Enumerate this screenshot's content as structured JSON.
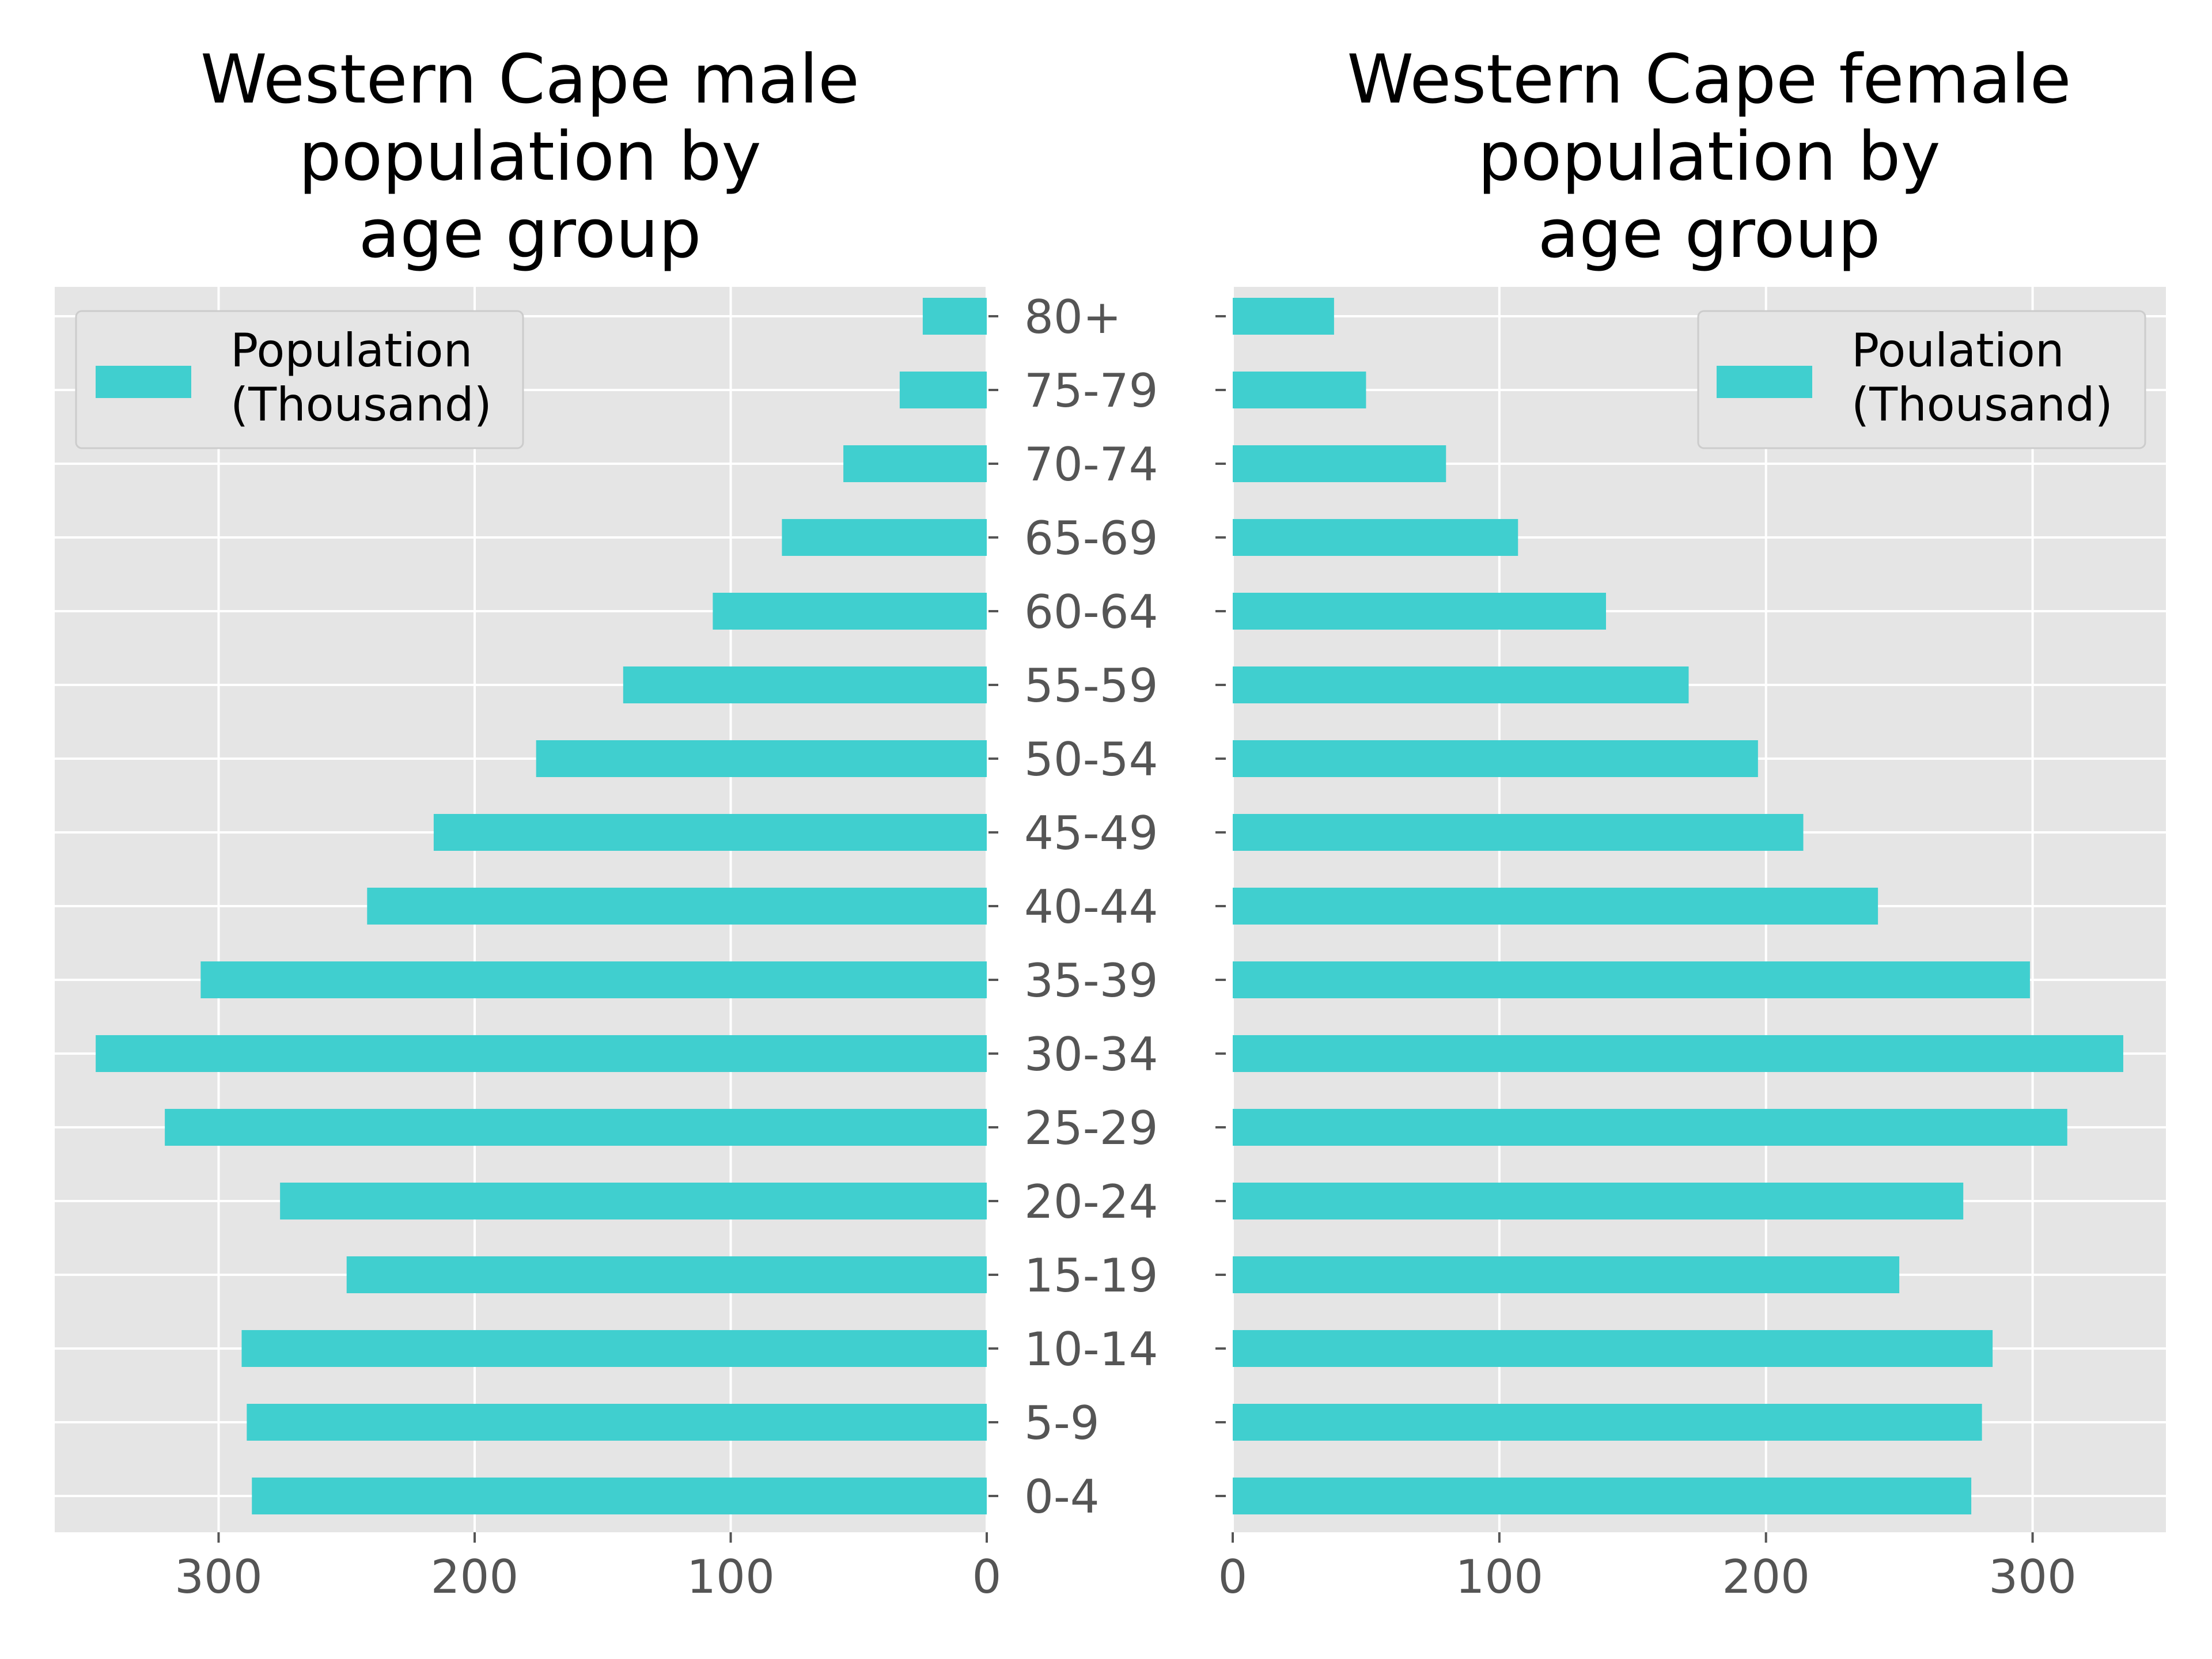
{
  "chart_data": [
    {
      "type": "bar",
      "orientation": "horizontal",
      "direction": "reversed",
      "title_lines": [
        "Western Cape male",
        "population by",
        "age group"
      ],
      "categories": [
        "0-4",
        "5-9",
        "10-14",
        "15-19",
        "20-24",
        "25-29",
        "30-34",
        "35-39",
        "40-44",
        "45-49",
        "50-54",
        "55-59",
        "60-64",
        "65-69",
        "70-74",
        "75-79",
        "80+"
      ],
      "series": [
        {
          "name_lines": [
            "Population",
            "(Thousand)"
          ],
          "values": [
            287,
            289,
            291,
            250,
            276,
            321,
            348,
            307,
            242,
            216,
            176,
            142,
            107,
            80,
            56,
            34,
            25
          ],
          "color": "#40CFCF"
        }
      ],
      "xlim": [
        0,
        364
      ],
      "xticks": [
        "0",
        "100",
        "200",
        "300"
      ],
      "xtick_values": [
        0,
        100,
        200,
        300
      ],
      "legend_position": "upper left",
      "grid": true,
      "background": "#E5E5E5"
    },
    {
      "type": "bar",
      "orientation": "horizontal",
      "direction": "normal",
      "title_lines": [
        "Western Cape female",
        "population by",
        "age group"
      ],
      "categories": [
        "0-4",
        "5-9",
        "10-14",
        "15-19",
        "20-24",
        "25-29",
        "30-34",
        "35-39",
        "40-44",
        "45-49",
        "50-54",
        "55-59",
        "60-64",
        "65-69",
        "70-74",
        "75-79",
        "80+"
      ],
      "series": [
        {
          "name_lines": [
            "Poulation",
            "(Thousand)"
          ],
          "values": [
            277,
            281,
            285,
            250,
            274,
            313,
            334,
            299,
            242,
            214,
            197,
            171,
            140,
            107,
            80,
            50,
            38
          ],
          "color": "#40CFCF"
        }
      ],
      "xlim": [
        0,
        350
      ],
      "xticks": [
        "0",
        "100",
        "200",
        "300"
      ],
      "xtick_values": [
        0,
        100,
        200,
        300
      ],
      "legend_position": "upper right",
      "grid": true,
      "background": "#E5E5E5"
    }
  ]
}
